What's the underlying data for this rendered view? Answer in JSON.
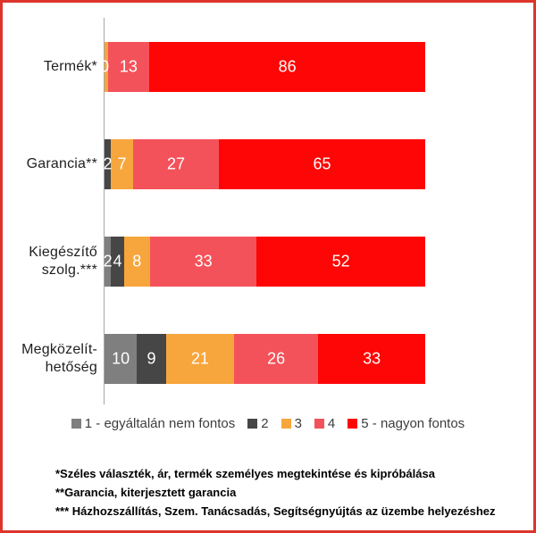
{
  "frame": {
    "border_color": "#dd352c",
    "background": "#ffffff"
  },
  "chart_data": {
    "type": "bar",
    "orientation": "horizontal",
    "stacked": true,
    "normalized_to_100": true,
    "unit": "%",
    "grid": false,
    "legend_position": "bottom",
    "axis_color": "#a6a6a6",
    "categories": [
      {
        "label": "Termék*",
        "lines": [
          "Termék*"
        ]
      },
      {
        "label": "Garancia**",
        "lines": [
          "Garancia**"
        ]
      },
      {
        "label": "Kiegészítő szolg.***",
        "lines": [
          "Kiegészítő",
          "szolg.***"
        ]
      },
      {
        "label": "Megközelíthetőség",
        "lines": [
          "Megközelít-",
          "hetőség"
        ]
      }
    ],
    "series": [
      {
        "name": "1 - egyáltalán nem fontos",
        "color": "#7f7f7f",
        "values": [
          0,
          0,
          2,
          10
        ]
      },
      {
        "name": "2",
        "color": "#464646",
        "values": [
          0,
          2,
          4,
          9
        ]
      },
      {
        "name": "3",
        "color": "#f7a63d",
        "values": [
          1,
          7,
          8,
          21
        ]
      },
      {
        "name": "4",
        "color": "#f4525a",
        "values": [
          13,
          27,
          33,
          26
        ]
      },
      {
        "name": "5 - nagyon fontos",
        "color": "#fe0606",
        "values": [
          86,
          65,
          52,
          33
        ]
      }
    ],
    "display_labels": [
      [
        "",
        "0",
        "",
        "13",
        "86"
      ],
      [
        "",
        "2",
        "7",
        "27",
        "65"
      ],
      [
        "2",
        "4",
        "8",
        "33",
        "52"
      ],
      [
        "10",
        "9",
        "21",
        "26",
        "33"
      ]
    ]
  },
  "footnotes": [
    "*Széles választék, ár, termék személyes megtekintése és kipróbálása",
    "**Garancia, kiterjesztett garancia",
    "*** Házhozszállítás, Szem. Tanácsadás, Segítségnyújtás az üzembe helyezéshez"
  ]
}
